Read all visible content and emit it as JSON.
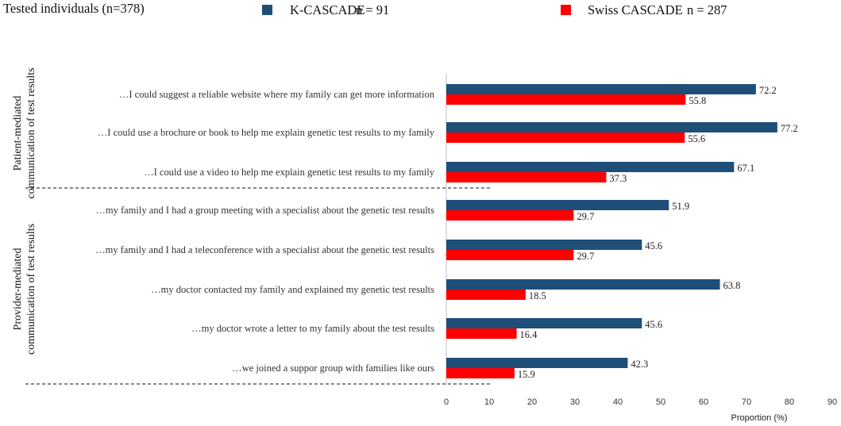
{
  "header": {
    "title": "Tested individuals  (n=378)"
  },
  "chart_data": {
    "type": "bar",
    "orientation": "horizontal",
    "title": "Tested individuals  (n=378)",
    "xlabel": "Proportion  (%)",
    "xlim": [
      0,
      90
    ],
    "xticks": [
      0,
      10,
      20,
      30,
      40,
      50,
      60,
      70,
      80,
      90
    ],
    "legend_position": "top",
    "groups": [
      {
        "label_line1": "Patient-mediated",
        "label_line2": "communication of test results",
        "start": 0,
        "count": 3
      },
      {
        "label_line1": "Provider-mediated",
        "label_line2": "communication of test results",
        "start": 3,
        "count": 5
      }
    ],
    "categories": [
      "…I could suggest  a reliable  website  where my family  can get more information",
      "…I could use a brochure or book to help me explain  genetic test results to my family",
      "…I could use a video to help me explain  genetic  test results  to my family",
      "…my family  and I had a group meeting  with a specialist  about the genetic test results",
      "…my family  and I had a teleconference  with  a specialist  about the genetic  test results",
      "…my doctor contacted my family  and explained  my  genetic  test results",
      "…my doctor wrote a letter to my family  about the test results",
      "…we joined  a suppor group with families  like ours"
    ],
    "series": [
      {
        "name": "K-CASCADE",
        "n_label": "n = 91",
        "color": "#1f4e79",
        "values": [
          72.2,
          77.2,
          67.1,
          51.9,
          45.6,
          63.8,
          45.6,
          42.3
        ]
      },
      {
        "name": "Swiss CASCADE",
        "n_label": "n = 287",
        "color": "#ff0000",
        "values": [
          55.8,
          55.6,
          37.3,
          29.7,
          29.7,
          18.5,
          16.4,
          15.9
        ]
      }
    ]
  }
}
